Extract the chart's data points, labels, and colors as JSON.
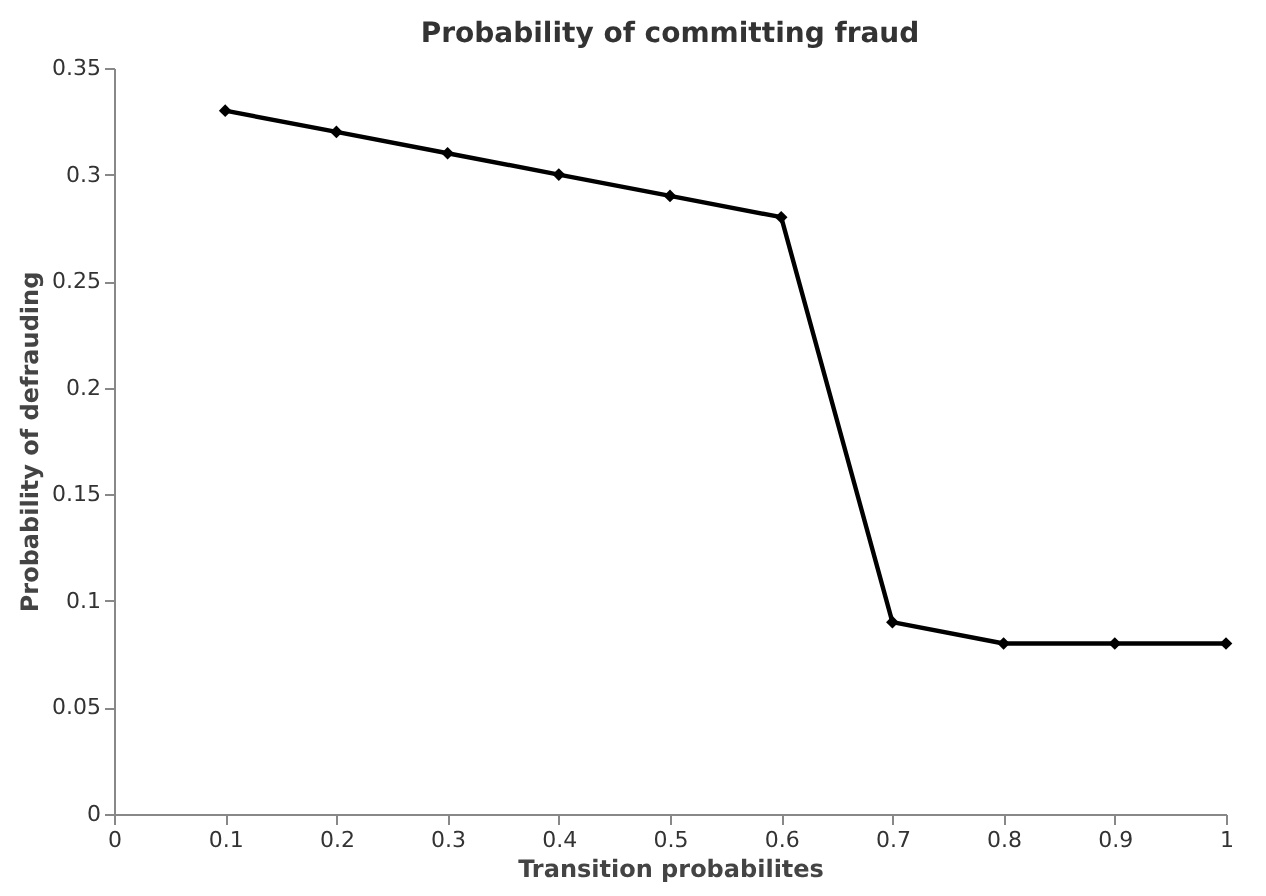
{
  "chart_data": {
    "type": "line",
    "title": "Probability of committing fraud",
    "xlabel": "Transition probabilites",
    "ylabel": "Probability of defrauding",
    "x": [
      0.1,
      0.2,
      0.3,
      0.4,
      0.5,
      0.6,
      0.7,
      0.8,
      0.9,
      1.0
    ],
    "series": [
      {
        "color": "#000000",
        "values": [
          0.33,
          0.32,
          0.31,
          0.3,
          0.29,
          0.28,
          0.09,
          0.08,
          0.08,
          0.08
        ]
      }
    ],
    "xlim": [
      0,
      1
    ],
    "xticks": [
      0,
      0.1,
      0.2,
      0.3,
      0.4,
      0.5,
      0.6,
      0.7,
      0.8,
      0.9,
      1
    ],
    "ylim": [
      0,
      0.35
    ],
    "yticks": [
      0,
      0.05,
      0.1,
      0.15,
      0.2,
      0.25,
      0.3,
      0.35
    ],
    "grid": false,
    "marker": "diamond",
    "line_style": "solid"
  }
}
